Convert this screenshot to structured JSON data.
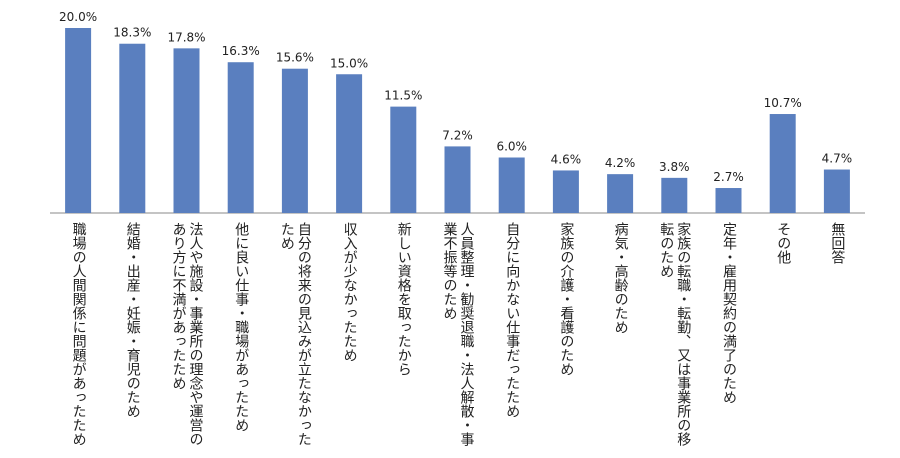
{
  "chart_data": {
    "type": "bar",
    "categories": [
      "職場の人間関係に問題があったため",
      "結婚・出産・妊娠・育児のため",
      "法人や施設・事業所の理念や運営のあり方に不満があったため",
      "他に良い仕事・職場があったため",
      "自分の将来の見込みが立たなかったため",
      "収入が少なかったため",
      "新しい資格を取ったから",
      "人員整理・勧奨退職・法人解散・事業不振等のため",
      "自分に向かない仕事だったため",
      "家族の介護・看護のため",
      "病気・高齢のため",
      "家族の転職・転勤、又は事業所の移転のため",
      "定年・雇用契約の満了のため",
      "その他",
      "無回答"
    ],
    "values": [
      20.0,
      18.3,
      17.8,
      16.3,
      15.6,
      15.0,
      11.5,
      7.2,
      6.0,
      4.6,
      4.2,
      3.8,
      2.7,
      10.7,
      4.7
    ],
    "value_labels": [
      "20.0%",
      "18.3%",
      "17.8%",
      "16.3%",
      "15.6%",
      "15.0%",
      "11.5%",
      "7.2%",
      "6.0%",
      "4.6%",
      "4.2%",
      "3.8%",
      "2.7%",
      "10.7%",
      "4.7%"
    ],
    "color": "#5a7fbf"
  }
}
